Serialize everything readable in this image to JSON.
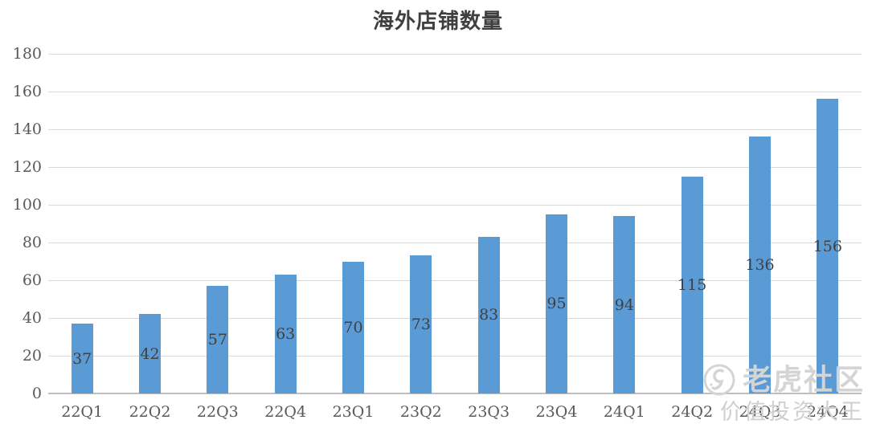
{
  "chart_data": {
    "type": "bar",
    "title": "海外店铺数量",
    "categories": [
      "22Q1",
      "22Q2",
      "22Q3",
      "22Q4",
      "23Q1",
      "23Q2",
      "23Q3",
      "23Q4",
      "24Q1",
      "24Q2",
      "24Q3",
      "24Q4"
    ],
    "values": [
      37,
      42,
      57,
      63,
      70,
      73,
      83,
      95,
      94,
      115,
      136,
      156
    ],
    "xlabel": "",
    "ylabel": "",
    "ylim": [
      0,
      180
    ],
    "ytick_step": 20,
    "yticks": [
      0,
      20,
      40,
      60,
      80,
      100,
      120,
      140,
      160,
      180
    ],
    "grid": true,
    "legend": "none",
    "label_position": "inside-center",
    "bar_color": "#5b9bd5"
  },
  "colors": {
    "bar": "#5b9bd5",
    "gridline": "#d9d9d9",
    "axis_line": "#bfbfbf",
    "tick_label": "#595959",
    "data_label": "#404040",
    "title": "#3f3f3f",
    "watermark": "#d4d4d4"
  },
  "watermark": {
    "brand": "老虎社区",
    "username": "价值投资大王",
    "logo_icon": "tiger-logo-icon"
  }
}
